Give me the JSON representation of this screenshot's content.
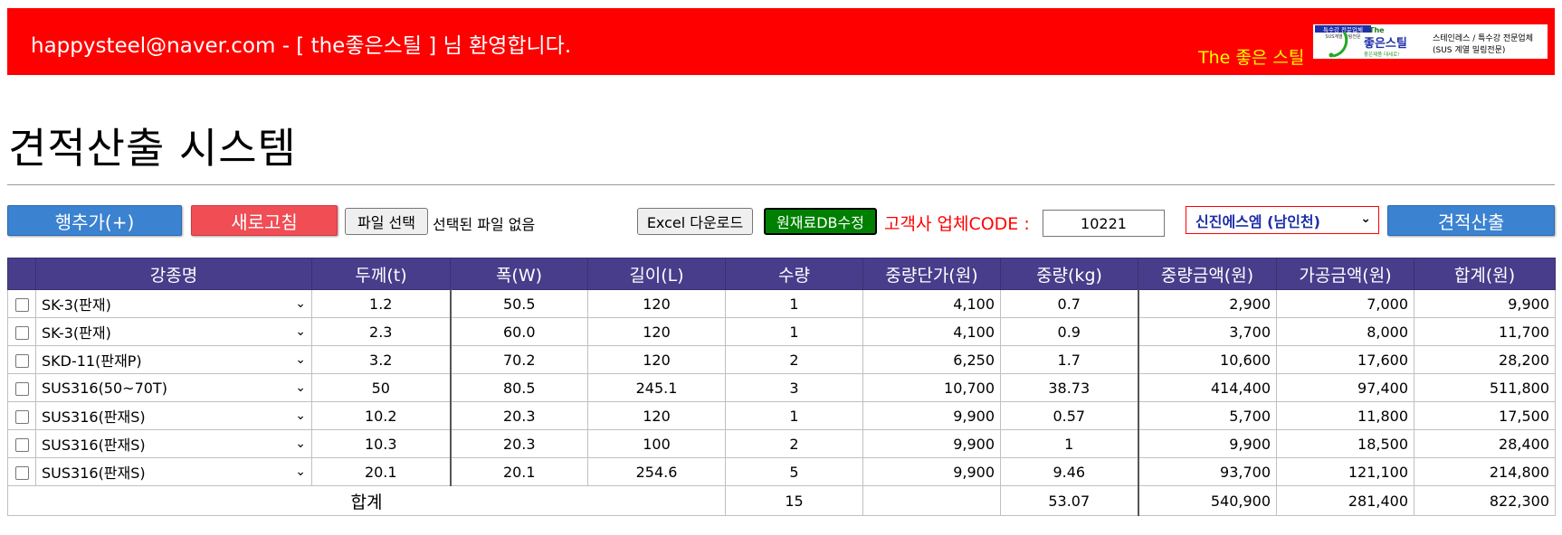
{
  "header": {
    "welcome": "happysteel@naver.com - [ the좋은스틸 ] 님 환영합니다.",
    "brand_text": "The 좋은 스틸",
    "logo": {
      "tag": "특수강 전문업체",
      "tag_sub": "SUS계열 밀링전문",
      "the": "The",
      "name": "좋은스틸",
      "slogan": "좋은제품 대세로!",
      "desc1": "스테인레스 / 특수강 전문업체",
      "desc2": "(SUS 계열 밀링전문)"
    },
    "colors": {
      "banner": "#ff0000",
      "brand_text": "#ffff00"
    }
  },
  "page": {
    "title": "견적산출 시스템"
  },
  "toolbar": {
    "add_row": "행추가(+)",
    "refresh": "새로고침",
    "file_select": "파일 선택",
    "no_file": "선택된 파일 없음",
    "excel_download": "Excel 다운로드",
    "db_edit": "원재료DB수정",
    "code_label": "고객사 업체CODE :",
    "code_value": "10221",
    "vendor_selected": "신진에스엠 (남인천)",
    "calculate": "견적산출"
  },
  "table": {
    "headers": [
      "강종명",
      "두께(t)",
      "폭(W)",
      "길이(L)",
      "수량",
      "중량단가(원)",
      "중량(kg)",
      "중량금액(원)",
      "가공금액(원)",
      "합계(원)"
    ],
    "rows": [
      {
        "grade": "SK-3(판재)",
        "t": "1.2",
        "w": "50.5",
        "l": "120",
        "qty": "1",
        "unit": "4,100",
        "kg": "0.7",
        "wamt": "2,900",
        "pamt": "7,000",
        "total": "9,900"
      },
      {
        "grade": "SK-3(판재)",
        "t": "2.3",
        "w": "60.0",
        "l": "120",
        "qty": "1",
        "unit": "4,100",
        "kg": "0.9",
        "wamt": "3,700",
        "pamt": "8,000",
        "total": "11,700"
      },
      {
        "grade": "SKD-11(판재P)",
        "t": "3.2",
        "w": "70.2",
        "l": "120",
        "qty": "2",
        "unit": "6,250",
        "kg": "1.7",
        "wamt": "10,600",
        "pamt": "17,600",
        "total": "28,200"
      },
      {
        "grade": "SUS316(50~70T)",
        "t": "50",
        "w": "80.5",
        "l": "245.1",
        "qty": "3",
        "unit": "10,700",
        "kg": "38.73",
        "wamt": "414,400",
        "pamt": "97,400",
        "total": "511,800"
      },
      {
        "grade": "SUS316(판재S)",
        "t": "10.2",
        "w": "20.3",
        "l": "120",
        "qty": "1",
        "unit": "9,900",
        "kg": "0.57",
        "wamt": "5,700",
        "pamt": "11,800",
        "total": "17,500"
      },
      {
        "grade": "SUS316(판재S)",
        "t": "10.3",
        "w": "20.3",
        "l": "100",
        "qty": "2",
        "unit": "9,900",
        "kg": "1",
        "wamt": "9,900",
        "pamt": "18,500",
        "total": "28,400"
      },
      {
        "grade": "SUS316(판재S)",
        "t": "20.1",
        "w": "20.1",
        "l": "254.6",
        "qty": "5",
        "unit": "9,900",
        "kg": "9.46",
        "wamt": "93,700",
        "pamt": "121,100",
        "total": "214,800"
      }
    ],
    "total": {
      "label": "합계",
      "qty": "15",
      "kg": "53.07",
      "wamt": "540,900",
      "pamt": "281,400",
      "total": "822,300"
    }
  }
}
